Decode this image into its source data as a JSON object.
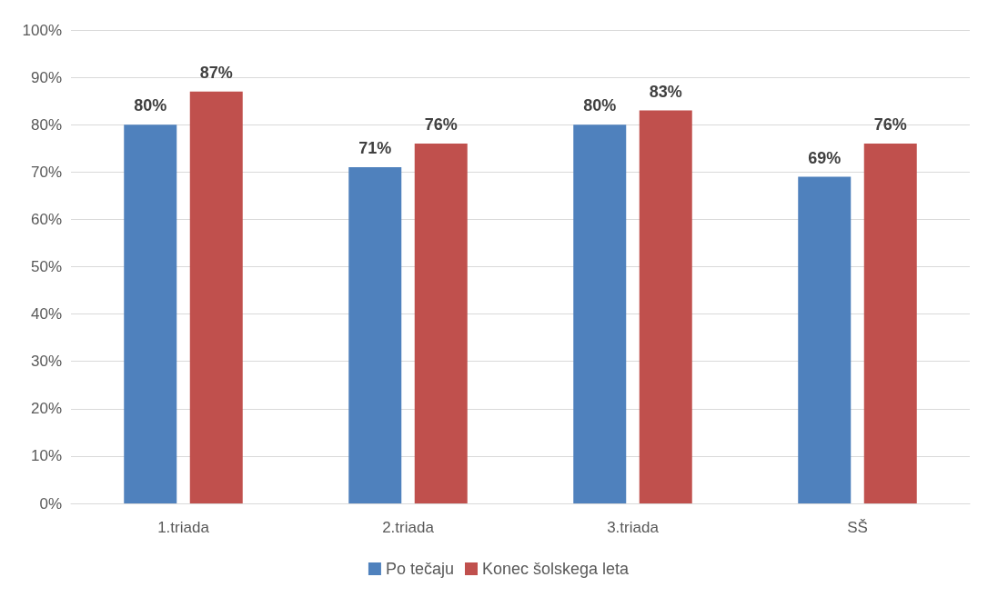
{
  "chart_data": {
    "type": "bar",
    "categories": [
      "1.triada",
      "2.triada",
      "3.triada",
      "SŠ"
    ],
    "series": [
      {
        "name": "Po tečaju",
        "color": "#4f81bd",
        "values": [
          80,
          71,
          80,
          69
        ],
        "value_labels": [
          "80%",
          "71%",
          "80%",
          "69%"
        ]
      },
      {
        "name": "Konec šolskega leta",
        "color": "#c0504d",
        "values": [
          87,
          76,
          83,
          76
        ],
        "value_labels": [
          "87%",
          "76%",
          "83%",
          "76%"
        ]
      }
    ],
    "ylim": [
      0,
      100
    ],
    "yticks": [
      {
        "value": 0,
        "label": "0%"
      },
      {
        "value": 10,
        "label": "10%"
      },
      {
        "value": 20,
        "label": "20%"
      },
      {
        "value": 30,
        "label": "30%"
      },
      {
        "value": 40,
        "label": "40%"
      },
      {
        "value": 50,
        "label": "50%"
      },
      {
        "value": 60,
        "label": "60%"
      },
      {
        "value": 70,
        "label": "70%"
      },
      {
        "value": 80,
        "label": "80%"
      },
      {
        "value": 90,
        "label": "90%"
      },
      {
        "value": 100,
        "label": "100%"
      }
    ],
    "grid": "y",
    "legend": "bottom"
  }
}
